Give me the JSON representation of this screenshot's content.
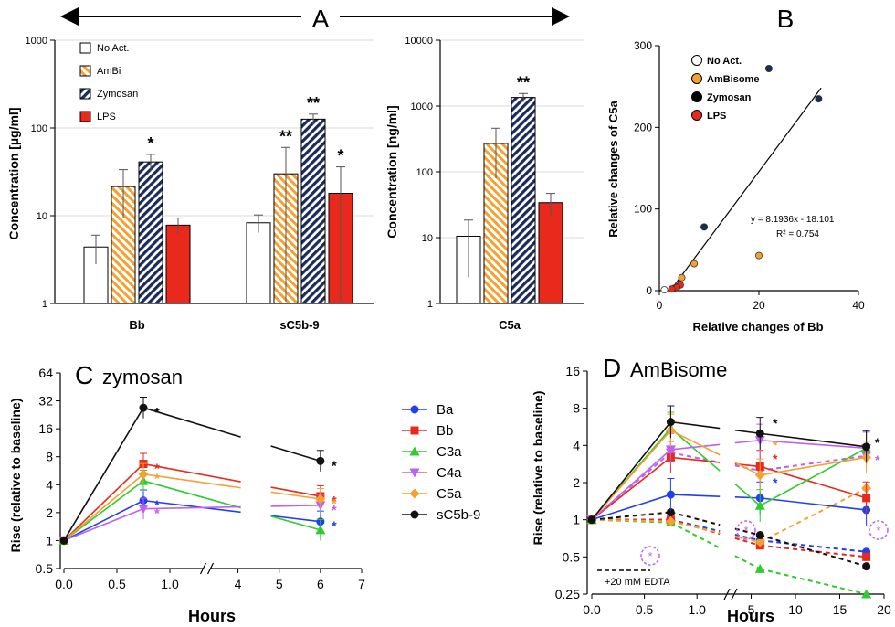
{
  "colors": {
    "black": "#000000",
    "ambi_orange": "#f5a030",
    "zym_navy": "#1c2b5a",
    "lps_red": "#e8291c",
    "ba": "#1f3ff0",
    "bb": "#e8291c",
    "c3a": "#2ecc2e",
    "c4a": "#c060f0",
    "c5a": "#f5a030",
    "sc5b9": "#111111",
    "grid": "#d9d9d9"
  },
  "panel_labels": {
    "a": "A",
    "b": "B",
    "c": "C",
    "d": "D"
  },
  "chart_data": [
    {
      "id": "A1",
      "type": "bar",
      "scale": "log",
      "ylabel": "Concentration [µg/ml]",
      "ylim": [
        1,
        1000
      ],
      "yticks": [
        "1",
        "10",
        "100",
        "1000"
      ],
      "categories": [
        "Bb",
        "sC5b-9"
      ],
      "series": [
        {
          "name": "No Act.",
          "pattern": "none",
          "values": [
            4.4,
            8.3
          ],
          "err": [
            1.6,
            1.9
          ],
          "sig": [
            "",
            ""
          ]
        },
        {
          "name": "AmBi",
          "pattern": "orange-stripe",
          "values": [
            21.5,
            30
          ],
          "err": [
            12,
            30
          ],
          "sig": [
            "",
            "**"
          ]
        },
        {
          "name": "Zymosan",
          "pattern": "navy-stripe",
          "values": [
            41,
            126
          ],
          "err": [
            9,
            18
          ],
          "sig": [
            "*",
            "**"
          ]
        },
        {
          "name": "LPS",
          "pattern": "solid-red",
          "values": [
            7.8,
            18
          ],
          "err": [
            1.6,
            18
          ],
          "sig": [
            "",
            "*"
          ]
        }
      ]
    },
    {
      "id": "A2",
      "type": "bar",
      "scale": "log",
      "ylabel": "Concentration [ng/ml]",
      "ylim": [
        1,
        10000
      ],
      "yticks": [
        "1",
        "10",
        "100",
        "1000",
        "10000"
      ],
      "categories": [
        "C5a"
      ],
      "series": [
        {
          "name": "No Act.",
          "values": [
            10.5
          ],
          "err": [
            8
          ],
          "sig": [
            ""
          ]
        },
        {
          "name": "AmBi",
          "values": [
            270
          ],
          "err": [
            190
          ],
          "sig": [
            ""
          ]
        },
        {
          "name": "Zymosan",
          "values": [
            1350
          ],
          "err": [
            200
          ],
          "sig": [
            "**"
          ]
        },
        {
          "name": "LPS",
          "values": [
            34
          ],
          "err": [
            13
          ],
          "sig": [
            ""
          ]
        }
      ]
    },
    {
      "id": "B",
      "type": "scatter",
      "xlabel": "Relative changes of Bb",
      "ylabel": "Relative changes of C5a",
      "xlim": [
        0,
        40
      ],
      "ylim": [
        0,
        300
      ],
      "xticks": [
        "0",
        "20",
        "40"
      ],
      "yticks": [
        "0",
        "100",
        "200",
        "300"
      ],
      "legend": [
        "No Act.",
        "AmBisome",
        "Zymosan",
        "LPS"
      ],
      "equation": "y = 8.1936x - 18.101",
      "r2": "R² = 0.754",
      "fit": {
        "slope": 8.1936,
        "intercept": -18.101,
        "x_from": 2.5,
        "x_to": 32.5
      },
      "points": [
        {
          "g": "zymosan",
          "x": 22,
          "y": 272
        },
        {
          "g": "zymosan",
          "x": 32,
          "y": 235
        },
        {
          "g": "zymosan",
          "x": 9,
          "y": 78
        },
        {
          "g": "zymosan",
          "x": 3,
          "y": 3
        },
        {
          "g": "ambisome",
          "x": 20,
          "y": 43
        },
        {
          "g": "ambisome",
          "x": 7,
          "y": 33
        },
        {
          "g": "ambisome",
          "x": 4.5,
          "y": 16
        },
        {
          "g": "ambisome",
          "x": 4,
          "y": 8
        },
        {
          "g": "lps",
          "x": 4.2,
          "y": 7
        },
        {
          "g": "lps",
          "x": 3.5,
          "y": 4
        },
        {
          "g": "lps",
          "x": 2.5,
          "y": 2
        },
        {
          "g": "noact",
          "x": 1,
          "y": 1
        }
      ]
    },
    {
      "id": "C",
      "type": "line",
      "title": "zymosan",
      "scale": "log2",
      "xlabel": "Hours",
      "ylabel": "Rise (relative to baseline)",
      "yticks": [
        "0.5",
        "1",
        "2",
        "4",
        "8",
        "16",
        "32",
        "64"
      ],
      "xticks_left": [
        "0.0",
        "0.5",
        "1.0"
      ],
      "xticks_right": [
        "4",
        "5",
        "6",
        "7"
      ],
      "x": [
        0,
        0.75,
        6
      ],
      "series": [
        {
          "name": "Ba",
          "values": [
            1,
            2.7,
            1.6
          ],
          "sig": [
            "",
            "*",
            "*"
          ]
        },
        {
          "name": "Bb",
          "values": [
            1,
            6.7,
            3.0
          ],
          "sig": [
            "",
            "*",
            "*"
          ]
        },
        {
          "name": "C3a",
          "values": [
            1,
            4.4,
            1.3
          ],
          "sig": [
            "",
            "",
            ""
          ]
        },
        {
          "name": "C4a",
          "values": [
            1,
            2.2,
            2.4
          ],
          "sig": [
            "",
            "*",
            "*"
          ]
        },
        {
          "name": "C5a",
          "values": [
            1,
            5.2,
            2.8
          ],
          "sig": [
            "",
            "*",
            "*"
          ]
        },
        {
          "name": "sC5b-9",
          "values": [
            1,
            27,
            7.2
          ],
          "sig": [
            "",
            "*",
            "*"
          ]
        }
      ]
    },
    {
      "id": "D",
      "type": "line",
      "title": "AmBisome",
      "scale": "log2",
      "xlabel": "Hours",
      "ylabel": "Rise (relative to baseline)",
      "yticks": [
        "0.25",
        "0.5",
        "1",
        "2",
        "4",
        "8",
        "16"
      ],
      "xticks_left": [
        "0.0",
        "0.5",
        "1.0"
      ],
      "xticks_right": [
        "5",
        "10",
        "15",
        "20"
      ],
      "x": [
        0,
        0.75,
        6,
        18
      ],
      "annotation": "+20 mM EDTA",
      "series": [
        {
          "name": "Ba",
          "values": [
            1,
            1.6,
            1.5,
            1.2
          ]
        },
        {
          "name": "Bb",
          "values": [
            1,
            3.2,
            2.7,
            1.5
          ]
        },
        {
          "name": "C3a",
          "values": [
            1,
            5.5,
            1.3,
            3.8
          ]
        },
        {
          "name": "C4a",
          "values": [
            1,
            3.7,
            4.4,
            3.8
          ]
        },
        {
          "name": "C5a",
          "values": [
            1,
            5.3,
            2.3,
            3.2
          ]
        },
        {
          "name": "sC5b-9",
          "values": [
            1,
            6.2,
            5.0,
            3.9
          ]
        }
      ],
      "edta_series": [
        {
          "name": "Ba",
          "values": [
            1,
            1.0,
            0.68,
            0.55
          ]
        },
        {
          "name": "Bb",
          "values": [
            1,
            1.0,
            0.62,
            0.5
          ]
        },
        {
          "name": "C3a",
          "values": [
            1,
            0.95,
            0.4,
            0.25
          ]
        },
        {
          "name": "C4a",
          "values": [
            1,
            3.5,
            2.5,
            3.3
          ]
        },
        {
          "name": "C5a",
          "values": [
            1,
            0.97,
            0.66,
            1.8
          ]
        },
        {
          "name": "sC5b-9",
          "values": [
            1,
            1.15,
            0.75,
            0.42
          ]
        }
      ]
    }
  ]
}
